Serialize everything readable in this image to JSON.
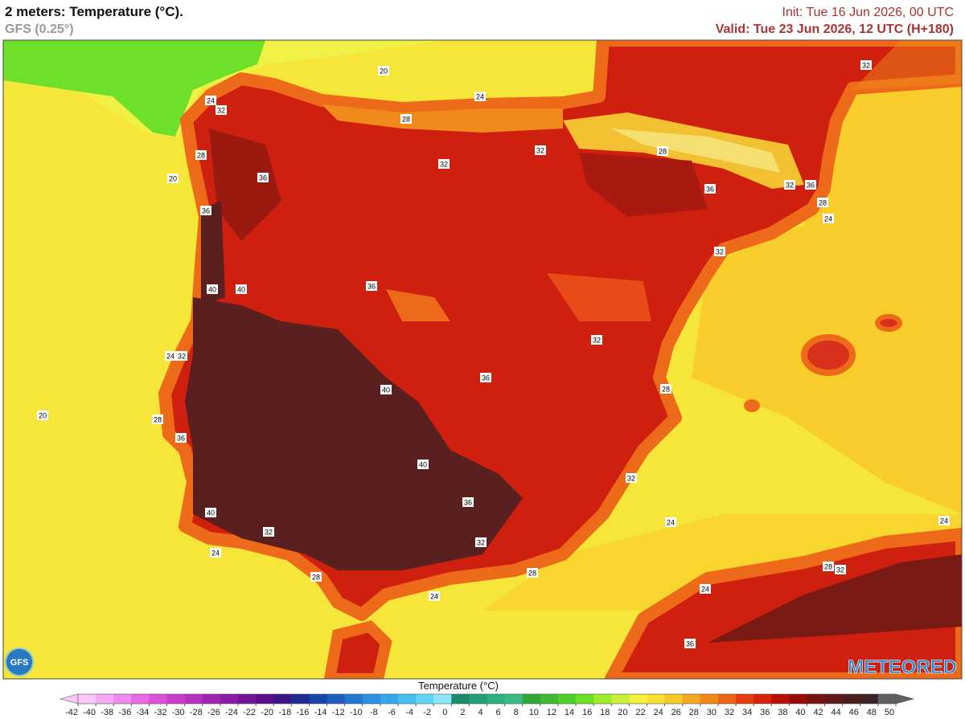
{
  "header": {
    "title": "2 meters: Temperature (°C).",
    "subtitle": "GFS (0.25°)",
    "init": "Init: Tue 16 Jun 2026, 00 UTC",
    "valid": "Valid: Tue 23 Jun 2026, 12 UTC (H+180)"
  },
  "map": {
    "contour_labels": [
      20,
      24,
      32,
      24,
      28,
      32,
      32,
      28,
      28,
      36,
      20,
      36,
      36,
      32,
      36,
      28,
      24,
      32,
      32,
      40,
      40,
      36,
      32,
      24,
      32,
      36,
      40,
      28,
      20,
      28,
      36,
      40,
      32,
      36,
      40,
      24,
      24,
      32,
      24,
      32,
      28,
      32,
      28,
      28,
      24,
      24,
      36
    ],
    "logo_left": "GFS",
    "logo_right": "METEORED"
  },
  "colorbar": {
    "title": "Temperature (°C)",
    "ticks": [
      -42,
      -40,
      -38,
      -36,
      -34,
      -32,
      -30,
      -28,
      -26,
      -24,
      -22,
      -20,
      -18,
      -16,
      -14,
      -12,
      -10,
      -8,
      -6,
      -4,
      -2,
      0,
      2,
      4,
      6,
      8,
      10,
      12,
      14,
      16,
      18,
      20,
      22,
      24,
      26,
      28,
      30,
      32,
      34,
      36,
      38,
      40,
      42,
      44,
      46,
      48,
      50
    ],
    "colors": [
      "#f9c8f9",
      "#f5a8f3",
      "#f08aee",
      "#e86be6",
      "#de50dc",
      "#cc3ccc",
      "#b830c0",
      "#a024b4",
      "#8a1aa8",
      "#74129c",
      "#5c0c8e",
      "#3c1488",
      "#1c2c90",
      "#1a44a8",
      "#1e5cc0",
      "#2276d4",
      "#2a90e0",
      "#34a8ea",
      "#44c0f0",
      "#60d4f4",
      "#8ae6f8",
      "#1a8c6c",
      "#22a078",
      "#2cb080",
      "#38bc84",
      "#30a838",
      "#3cba30",
      "#4cd028",
      "#6ae020",
      "#9aec2a",
      "#c8f03a",
      "#f0f040",
      "#f8e030",
      "#f8c828",
      "#f4a820",
      "#f08818",
      "#ec6414",
      "#e43c10",
      "#d8200c",
      "#b81008",
      "#980c08",
      "#781010",
      "#601818",
      "#4c1c1c",
      "#3c2424",
      "#606060"
    ]
  }
}
